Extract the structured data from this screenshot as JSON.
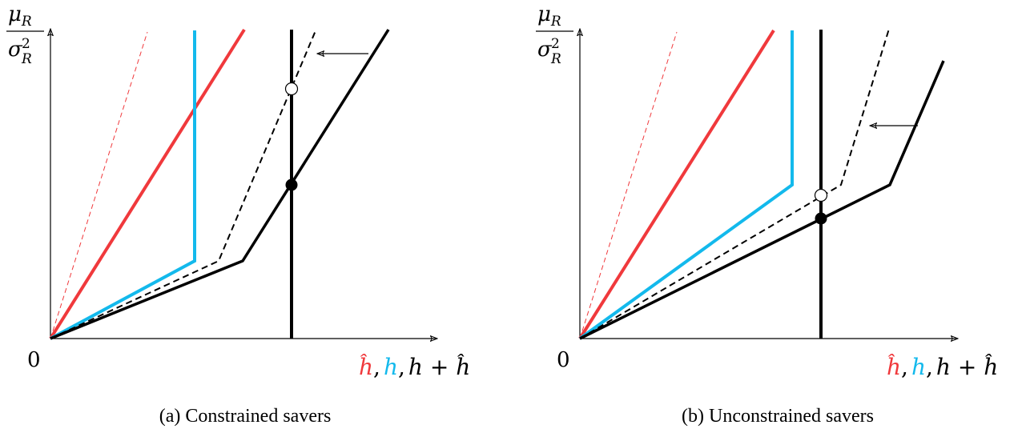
{
  "colors": {
    "red": "#f0393c",
    "cyan": "#13b9ec",
    "black": "#000000"
  },
  "panels": [
    {
      "origin_label": "0",
      "y_axis_label": {
        "numerator": "μ",
        "numerator_sub": "R",
        "denominator": "σ",
        "denominator_sup": "2",
        "denominator_sub": "R"
      },
      "x_axis_label": {
        "part1": "ĥ",
        "sep1": ",",
        "part2": "h",
        "sep2": ",",
        "part3": "h + ĥ"
      },
      "caption": "(a) Constrained savers"
    },
    {
      "origin_label": "0",
      "y_axis_label": {
        "numerator": "μ",
        "numerator_sub": "R",
        "denominator": "σ",
        "denominator_sup": "2",
        "denominator_sub": "R"
      },
      "x_axis_label": {
        "part1": "ĥ",
        "sep1": ",",
        "part2": "h",
        "sep2": ",",
        "part3": "h + ĥ"
      },
      "caption": "(b) Unconstrained savers"
    }
  ]
}
